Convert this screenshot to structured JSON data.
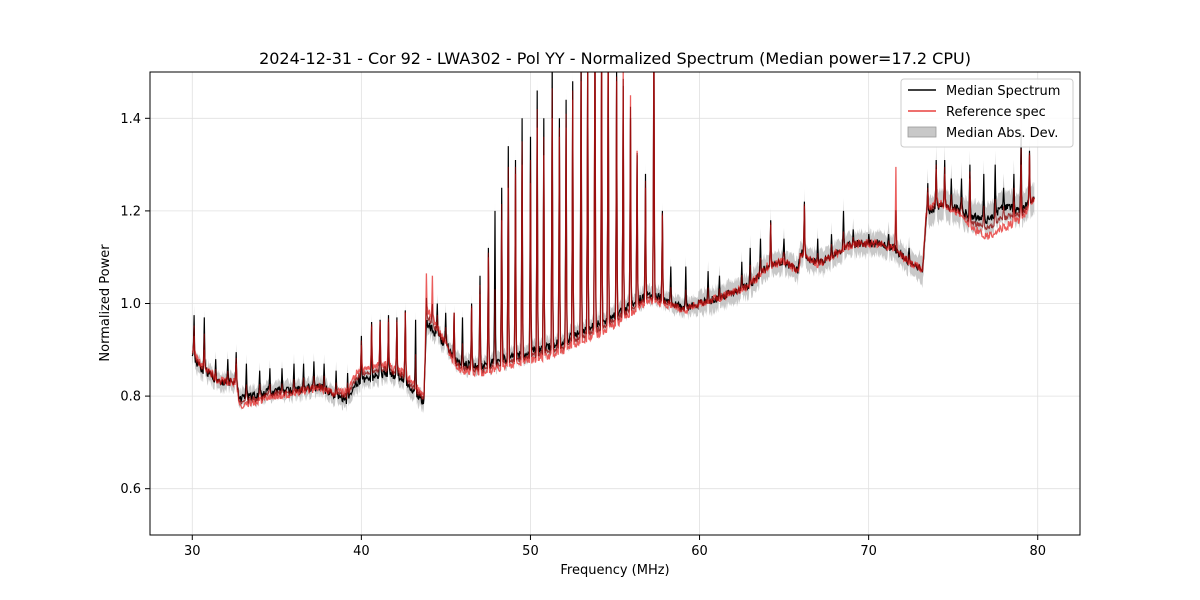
{
  "chart_data": {
    "type": "line",
    "title": "2024-12-31 - Cor 92 - LWA302 - Pol YY - Normalized Spectrum (Median power=17.2 CPU)",
    "xlabel": "Frequency (MHz)",
    "ylabel": "Normalized Power",
    "xlim": [
      27.5,
      82.5
    ],
    "ylim": [
      0.5,
      1.5
    ],
    "xticks": [
      30,
      40,
      50,
      60,
      70,
      80
    ],
    "yticks": [
      0.6,
      0.8,
      1.0,
      1.2,
      1.4
    ],
    "xtick_labels": [
      "30",
      "40",
      "50",
      "60",
      "70",
      "80"
    ],
    "ytick_labels": [
      "0.6",
      "0.8",
      "1.0",
      "1.2",
      "1.4"
    ],
    "grid": true,
    "legend_position": "upper right",
    "colors": {
      "median": "#000000",
      "reference": "#e8413f",
      "mad_fill": "#b0b0b0",
      "overlap": "#8b0000",
      "grid": "#e0e0e0"
    },
    "legend": [
      {
        "label": "Median Spectrum",
        "kind": "line",
        "color": "#000000"
      },
      {
        "label": "Reference spec",
        "kind": "line",
        "color": "#e8413f"
      },
      {
        "label": "Median Abs. Dev.",
        "kind": "patch",
        "color": "#b0b0b0"
      }
    ],
    "baseline_points": [
      [
        30.0,
        0.885
      ],
      [
        30.5,
        0.86
      ],
      [
        31.0,
        0.85
      ],
      [
        31.5,
        0.83
      ],
      [
        32.0,
        0.83
      ],
      [
        32.6,
        0.83
      ],
      [
        32.8,
        0.795
      ],
      [
        33.5,
        0.8
      ],
      [
        34.5,
        0.81
      ],
      [
        35.5,
        0.81
      ],
      [
        36.5,
        0.815
      ],
      [
        37.5,
        0.82
      ],
      [
        38.5,
        0.8
      ],
      [
        39.2,
        0.79
      ],
      [
        39.8,
        0.83
      ],
      [
        40.5,
        0.84
      ],
      [
        41.5,
        0.85
      ],
      [
        42.5,
        0.835
      ],
      [
        43.2,
        0.81
      ],
      [
        43.7,
        0.785
      ],
      [
        43.85,
        0.96
      ],
      [
        44.5,
        0.93
      ],
      [
        45.0,
        0.91
      ],
      [
        45.5,
        0.885
      ],
      [
        46.0,
        0.87
      ],
      [
        47.0,
        0.865
      ],
      [
        48.0,
        0.875
      ],
      [
        49.0,
        0.885
      ],
      [
        50.0,
        0.895
      ],
      [
        51.0,
        0.905
      ],
      [
        52.0,
        0.92
      ],
      [
        53.0,
        0.94
      ],
      [
        54.0,
        0.955
      ],
      [
        55.0,
        0.975
      ],
      [
        56.0,
        1.0
      ],
      [
        57.0,
        1.02
      ],
      [
        58.0,
        1.01
      ],
      [
        59.0,
        0.99
      ],
      [
        60.0,
        1.0
      ],
      [
        61.0,
        1.01
      ],
      [
        62.0,
        1.025
      ],
      [
        63.0,
        1.04
      ],
      [
        64.0,
        1.08
      ],
      [
        65.0,
        1.09
      ],
      [
        65.8,
        1.07
      ],
      [
        66.0,
        1.11
      ],
      [
        67.0,
        1.085
      ],
      [
        67.8,
        1.1
      ],
      [
        68.5,
        1.12
      ],
      [
        69.5,
        1.13
      ],
      [
        70.5,
        1.13
      ],
      [
        71.5,
        1.12
      ],
      [
        72.5,
        1.085
      ],
      [
        73.2,
        1.075
      ],
      [
        73.4,
        1.19
      ],
      [
        74.0,
        1.21
      ],
      [
        75.0,
        1.21
      ],
      [
        76.0,
        1.19
      ],
      [
        77.0,
        1.18
      ],
      [
        78.0,
        1.21
      ],
      [
        79.0,
        1.2
      ],
      [
        79.8,
        1.23
      ]
    ],
    "reference_offset_points": [
      [
        30.0,
        0.01
      ],
      [
        32.5,
        0.0
      ],
      [
        33.0,
        -0.015
      ],
      [
        38.0,
        0.0
      ],
      [
        39.5,
        0.025
      ],
      [
        43.7,
        0.01
      ],
      [
        44.0,
        0.03
      ],
      [
        45.5,
        -0.015
      ],
      [
        48.0,
        -0.015
      ],
      [
        52.0,
        -0.02
      ],
      [
        56.0,
        -0.02
      ],
      [
        60.0,
        0.0
      ],
      [
        70.0,
        0.0
      ],
      [
        73.0,
        0.0
      ],
      [
        74.0,
        0.01
      ],
      [
        76.5,
        -0.03
      ],
      [
        78.0,
        -0.045
      ],
      [
        79.8,
        0.0
      ]
    ],
    "median_spikes": [
      [
        30.1,
        0.975
      ],
      [
        30.7,
        0.97
      ],
      [
        31.4,
        0.88
      ],
      [
        32.1,
        0.88
      ],
      [
        32.6,
        0.895
      ],
      [
        33.2,
        0.87
      ],
      [
        34.0,
        0.855
      ],
      [
        34.6,
        0.86
      ],
      [
        35.3,
        0.86
      ],
      [
        36.0,
        0.87
      ],
      [
        36.6,
        0.87
      ],
      [
        37.2,
        0.875
      ],
      [
        37.8,
        0.87
      ],
      [
        38.5,
        0.855
      ],
      [
        39.2,
        0.85
      ],
      [
        40.0,
        0.93
      ],
      [
        40.6,
        0.96
      ],
      [
        41.1,
        0.965
      ],
      [
        41.6,
        0.975
      ],
      [
        42.1,
        0.97
      ],
      [
        42.6,
        0.985
      ],
      [
        43.2,
        0.965
      ],
      [
        44.5,
        1.0
      ],
      [
        45.0,
        0.98
      ],
      [
        45.5,
        0.98
      ],
      [
        46.0,
        0.97
      ],
      [
        46.5,
        1.0
      ],
      [
        47.0,
        1.06
      ],
      [
        47.5,
        1.12
      ],
      [
        47.9,
        1.2
      ],
      [
        48.3,
        1.25
      ],
      [
        48.7,
        1.34
      ],
      [
        49.1,
        1.31
      ],
      [
        49.5,
        1.4
      ],
      [
        50.0,
        1.36
      ],
      [
        50.4,
        1.46
      ],
      [
        50.8,
        1.4
      ],
      [
        51.3,
        1.53
      ],
      [
        51.7,
        1.4
      ],
      [
        52.1,
        1.44
      ],
      [
        52.5,
        1.48
      ],
      [
        53.0,
        1.58
      ],
      [
        53.4,
        1.56
      ],
      [
        53.8,
        1.6
      ],
      [
        54.2,
        1.56
      ],
      [
        54.6,
        1.58
      ],
      [
        55.1,
        1.5
      ],
      [
        55.5,
        1.47
      ],
      [
        55.9,
        1.4
      ],
      [
        56.3,
        1.32
      ],
      [
        56.8,
        1.28
      ],
      [
        57.3,
        1.6
      ],
      [
        57.8,
        1.2
      ],
      [
        58.3,
        1.08
      ],
      [
        59.2,
        1.08
      ],
      [
        60.5,
        1.07
      ],
      [
        61.2,
        1.06
      ],
      [
        62.5,
        1.09
      ],
      [
        63.0,
        1.12
      ],
      [
        63.6,
        1.14
      ],
      [
        64.2,
        1.18
      ],
      [
        65.0,
        1.14
      ],
      [
        66.2,
        1.22
      ],
      [
        67.0,
        1.14
      ],
      [
        67.8,
        1.15
      ],
      [
        68.5,
        1.2
      ],
      [
        69.1,
        1.16
      ],
      [
        70.0,
        1.15
      ],
      [
        71.2,
        1.15
      ],
      [
        72.4,
        1.12
      ],
      [
        73.5,
        1.26
      ],
      [
        74.0,
        1.31
      ],
      [
        74.5,
        1.31
      ],
      [
        74.9,
        1.27
      ],
      [
        75.5,
        1.27
      ],
      [
        76.0,
        1.3
      ],
      [
        76.8,
        1.28
      ],
      [
        77.5,
        1.3
      ],
      [
        78.0,
        1.25
      ],
      [
        78.6,
        1.28
      ],
      [
        79.0,
        1.37
      ],
      [
        79.5,
        1.33
      ]
    ],
    "reference_spikes": [
      [
        30.1,
        0.93
      ],
      [
        30.7,
        0.9
      ],
      [
        32.6,
        0.87
      ],
      [
        40.0,
        0.91
      ],
      [
        40.6,
        0.95
      ],
      [
        41.1,
        0.96
      ],
      [
        41.6,
        0.96
      ],
      [
        42.1,
        0.96
      ],
      [
        42.6,
        0.98
      ],
      [
        43.85,
        1.065
      ],
      [
        44.2,
        1.06
      ],
      [
        45.5,
        0.98
      ],
      [
        46.5,
        0.99
      ],
      [
        47.0,
        1.02
      ],
      [
        47.5,
        1.1
      ],
      [
        48.3,
        1.18
      ],
      [
        48.7,
        1.25
      ],
      [
        49.1,
        1.28
      ],
      [
        49.5,
        1.3
      ],
      [
        50.0,
        1.26
      ],
      [
        50.4,
        1.38
      ],
      [
        50.8,
        1.32
      ],
      [
        51.3,
        1.4
      ],
      [
        51.7,
        1.36
      ],
      [
        52.1,
        1.38
      ],
      [
        52.5,
        1.44
      ],
      [
        53.0,
        1.48
      ],
      [
        53.4,
        1.5
      ],
      [
        53.8,
        1.6
      ],
      [
        54.2,
        1.56
      ],
      [
        54.6,
        1.6
      ],
      [
        55.1,
        1.48
      ],
      [
        55.5,
        1.5
      ],
      [
        55.9,
        1.45
      ],
      [
        56.3,
        1.33
      ],
      [
        56.8,
        1.25
      ],
      [
        57.3,
        1.6
      ],
      [
        57.8,
        1.19
      ],
      [
        64.2,
        1.17
      ],
      [
        66.2,
        1.21
      ],
      [
        71.6,
        1.295
      ],
      [
        73.5,
        1.24
      ],
      [
        74.0,
        1.29
      ],
      [
        74.5,
        1.28
      ],
      [
        76.0,
        1.27
      ],
      [
        78.6,
        1.22
      ],
      [
        79.0,
        1.3
      ],
      [
        79.5,
        1.32
      ]
    ]
  }
}
